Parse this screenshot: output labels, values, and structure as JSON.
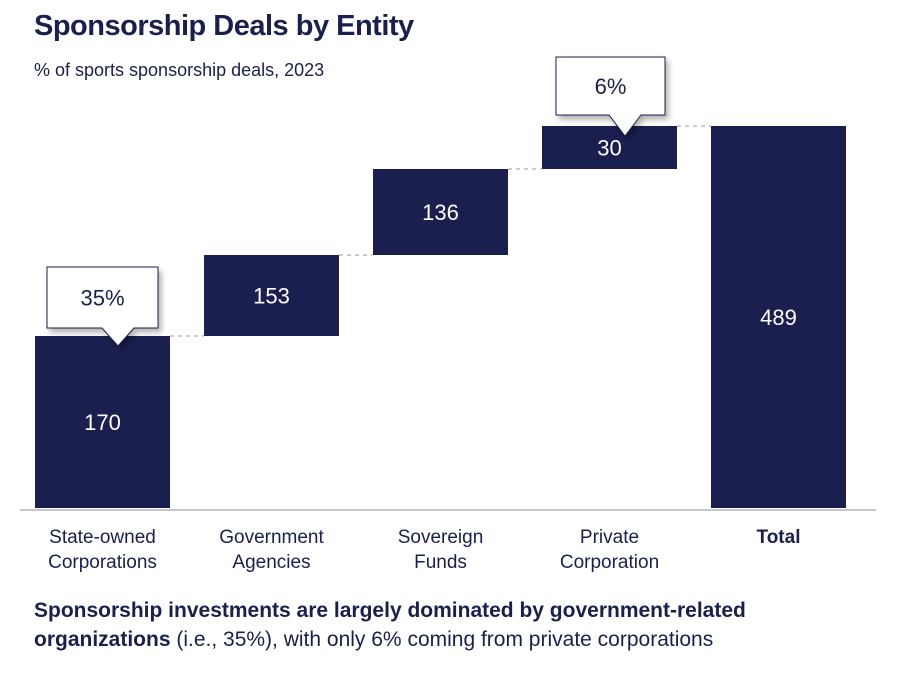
{
  "chart_data": {
    "type": "waterfall",
    "title": "Sponsorship Deals by Entity",
    "subtitle": "% of sports sponsorship deals, 2023",
    "categories": [
      [
        "State-owned",
        "Corporations"
      ],
      [
        "Government",
        "Agencies"
      ],
      [
        "Sovereign",
        "Funds"
      ],
      [
        "Private",
        "Corporation"
      ],
      [
        "Total"
      ]
    ],
    "values": [
      170,
      153,
      136,
      30,
      489
    ],
    "is_total": [
      false,
      false,
      false,
      false,
      true
    ],
    "callouts": [
      {
        "category_index": 0,
        "text": "35%"
      },
      {
        "category_index": 3,
        "text": "6%"
      }
    ],
    "bar_color": "#1b1f4f",
    "label_color": "#ffffff",
    "connector_style": "dashed",
    "grid": false
  },
  "takeaway": {
    "bold": "Sponsorship investments are largely dominated by government-related organizations",
    "rest": " (i.e., 35%), with only 6% coming from private corporations"
  }
}
